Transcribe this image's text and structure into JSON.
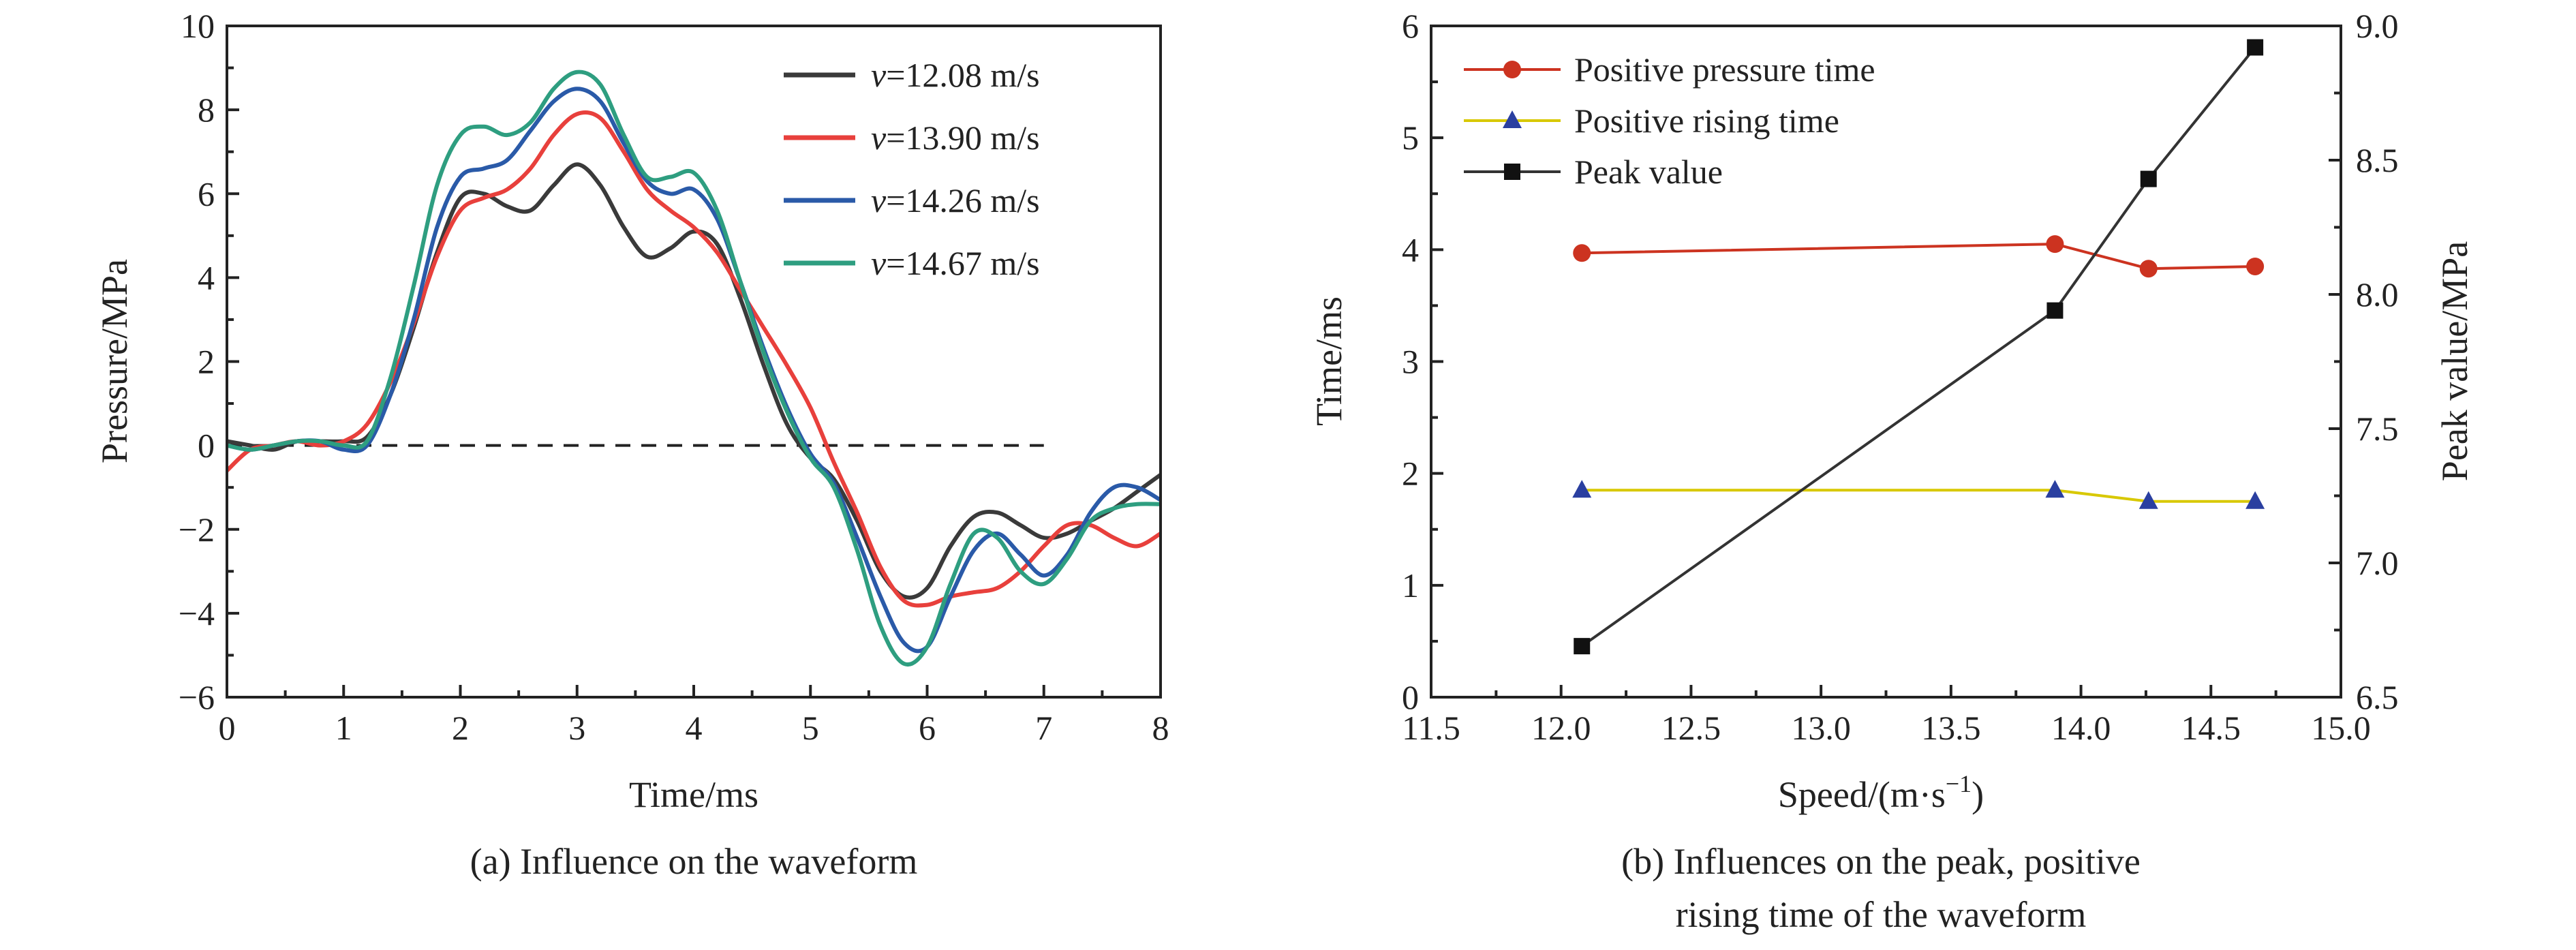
{
  "chart_data": [
    {
      "type": "line",
      "caption": "(a) Influence on the waveform",
      "xlabel": "Time/ms",
      "ylabel": "Pressure/MPa",
      "xlim": [
        0,
        8
      ],
      "ylim": [
        -6,
        10
      ],
      "xticks": [
        "0",
        "1",
        "2",
        "3",
        "4",
        "5",
        "6",
        "7",
        "8"
      ],
      "yticks": [
        "−6",
        "−4",
        "−2",
        "0",
        "2",
        "4",
        "6",
        "8",
        "10"
      ],
      "legend_position": "top-right",
      "reference_line": {
        "y": 0,
        "x": [
          0,
          7
        ],
        "style": "dashed"
      },
      "series": [
        {
          "name": "v=12.08 m/s",
          "name_var": "v",
          "name_rest": "=12.08 m/s",
          "color": "#3a3a3a",
          "x": [
            0,
            0.2,
            0.4,
            0.6,
            0.8,
            1.0,
            1.2,
            1.4,
            1.6,
            1.8,
            2.0,
            2.2,
            2.4,
            2.6,
            2.8,
            3.0,
            3.2,
            3.4,
            3.6,
            3.8,
            4.0,
            4.2,
            4.4,
            4.6,
            4.8,
            5.0,
            5.2,
            5.4,
            5.6,
            5.8,
            6.0,
            6.2,
            6.4,
            6.6,
            6.8,
            7.0,
            7.2,
            7.4,
            7.6,
            7.8,
            8.0
          ],
          "values": [
            0.1,
            0.0,
            -0.1,
            0.1,
            0.1,
            0.1,
            0.2,
            1.2,
            2.8,
            4.6,
            5.9,
            6.0,
            5.7,
            5.6,
            6.2,
            6.7,
            6.2,
            5.2,
            4.5,
            4.7,
            5.1,
            4.8,
            3.5,
            1.9,
            0.5,
            -0.3,
            -0.8,
            -1.8,
            -3.0,
            -3.6,
            -3.4,
            -2.4,
            -1.7,
            -1.6,
            -1.9,
            -2.2,
            -2.1,
            -1.8,
            -1.5,
            -1.1,
            -0.7
          ]
        },
        {
          "name": "v=13.90 m/s",
          "name_var": "v",
          "name_rest": "=13.90 m/s",
          "color": "#e8403c",
          "x": [
            0,
            0.2,
            0.4,
            0.6,
            0.8,
            1.0,
            1.2,
            1.4,
            1.6,
            1.8,
            2.0,
            2.2,
            2.4,
            2.6,
            2.8,
            3.0,
            3.2,
            3.4,
            3.6,
            3.8,
            4.0,
            4.2,
            4.4,
            4.6,
            4.8,
            5.0,
            5.2,
            5.4,
            5.6,
            5.8,
            6.0,
            6.2,
            6.4,
            6.6,
            6.8,
            7.0,
            7.2,
            7.4,
            7.6,
            7.8,
            8.0
          ],
          "values": [
            -0.6,
            -0.1,
            0.0,
            0.1,
            0.0,
            0.1,
            0.5,
            1.5,
            2.9,
            4.5,
            5.6,
            5.9,
            6.1,
            6.6,
            7.4,
            7.9,
            7.8,
            7.0,
            6.1,
            5.6,
            5.2,
            4.6,
            3.7,
            2.8,
            1.9,
            0.9,
            -0.4,
            -1.6,
            -2.9,
            -3.7,
            -3.8,
            -3.6,
            -3.5,
            -3.4,
            -3.0,
            -2.4,
            -1.9,
            -1.9,
            -2.2,
            -2.4,
            -2.1
          ]
        },
        {
          "name": "v=14.26 m/s",
          "name_var": "v",
          "name_rest": "=14.26 m/s",
          "color": "#2a5aa8",
          "x": [
            0,
            0.2,
            0.4,
            0.6,
            0.8,
            1.0,
            1.2,
            1.4,
            1.6,
            1.8,
            2.0,
            2.2,
            2.4,
            2.6,
            2.8,
            3.0,
            3.2,
            3.4,
            3.6,
            3.8,
            4.0,
            4.2,
            4.4,
            4.6,
            4.8,
            5.0,
            5.2,
            5.4,
            5.6,
            5.8,
            6.0,
            6.2,
            6.4,
            6.6,
            6.8,
            7.0,
            7.2,
            7.4,
            7.6,
            7.8,
            8.0
          ],
          "values": [
            0.0,
            -0.1,
            0.0,
            0.1,
            0.1,
            -0.1,
            0.0,
            1.2,
            3.0,
            5.2,
            6.4,
            6.6,
            6.8,
            7.5,
            8.2,
            8.5,
            8.2,
            7.2,
            6.3,
            6.0,
            6.1,
            5.4,
            3.9,
            2.3,
            0.9,
            -0.2,
            -0.9,
            -2.2,
            -3.6,
            -4.7,
            -4.8,
            -3.6,
            -2.5,
            -2.1,
            -2.6,
            -3.1,
            -2.6,
            -1.6,
            -1.0,
            -1.0,
            -1.3
          ]
        },
        {
          "name": "v=14.67 m/s",
          "name_var": "v",
          "name_rest": "=14.67 m/s",
          "color": "#2e9e80",
          "x": [
            0,
            0.2,
            0.4,
            0.6,
            0.8,
            1.0,
            1.2,
            1.4,
            1.6,
            1.8,
            2.0,
            2.2,
            2.4,
            2.6,
            2.8,
            3.0,
            3.2,
            3.4,
            3.6,
            3.8,
            4.0,
            4.2,
            4.4,
            4.6,
            4.8,
            5.0,
            5.2,
            5.4,
            5.6,
            5.8,
            6.0,
            6.2,
            6.4,
            6.6,
            6.8,
            7.0,
            7.2,
            7.4,
            7.6,
            7.8,
            8.0
          ],
          "values": [
            0.0,
            -0.1,
            0.0,
            0.1,
            0.1,
            0.0,
            0.1,
            1.6,
            3.8,
            6.2,
            7.4,
            7.6,
            7.4,
            7.7,
            8.5,
            8.9,
            8.6,
            7.4,
            6.4,
            6.4,
            6.5,
            5.6,
            3.9,
            2.2,
            0.8,
            -0.3,
            -1.0,
            -2.5,
            -4.3,
            -5.2,
            -4.8,
            -3.3,
            -2.1,
            -2.2,
            -3.0,
            -3.3,
            -2.7,
            -1.8,
            -1.5,
            -1.4,
            -1.4
          ]
        }
      ]
    },
    {
      "type": "line",
      "caption": [
        "(b) Influences on the peak, positive",
        "rising time of the waveform"
      ],
      "xlabel": "Speed/(m·s",
      "xlabel_sup": "−1",
      "xlabel_end": ")",
      "ylabel": "Time/ms",
      "y2label": "Peak value/MPa",
      "xlim": [
        11.5,
        15.0
      ],
      "ylim": [
        0,
        6
      ],
      "y2lim": [
        6.5,
        9.0
      ],
      "xticks": [
        "11.5",
        "12.0",
        "12.5",
        "13.0",
        "13.5",
        "14.0",
        "14.5",
        "15.0"
      ],
      "yticks": [
        "0",
        "1",
        "2",
        "3",
        "4",
        "5",
        "6"
      ],
      "y2ticks": [
        "6.5",
        "7.0",
        "7.5",
        "8.0",
        "8.5",
        "9.0"
      ],
      "legend_position": "top-left",
      "series": [
        {
          "name": "Positive pressure time",
          "axis": "left",
          "marker": "circle",
          "color": "#cc3320",
          "line_color": "#cc3320",
          "x": [
            12.08,
            13.9,
            14.26,
            14.67
          ],
          "values": [
            3.97,
            4.05,
            3.83,
            3.85
          ]
        },
        {
          "name": "Positive rising time",
          "axis": "left",
          "marker": "triangle",
          "color": "#2a3fa0",
          "line_color": "#d8c800",
          "x": [
            12.08,
            13.9,
            14.26,
            14.67
          ],
          "values": [
            1.85,
            1.85,
            1.75,
            1.75
          ]
        },
        {
          "name": "Peak value",
          "axis": "right",
          "marker": "square",
          "color": "#111111",
          "line_color": "#333333",
          "x": [
            12.08,
            13.9,
            14.26,
            14.67
          ],
          "values": [
            6.69,
            7.94,
            8.43,
            8.92
          ]
        }
      ]
    }
  ]
}
